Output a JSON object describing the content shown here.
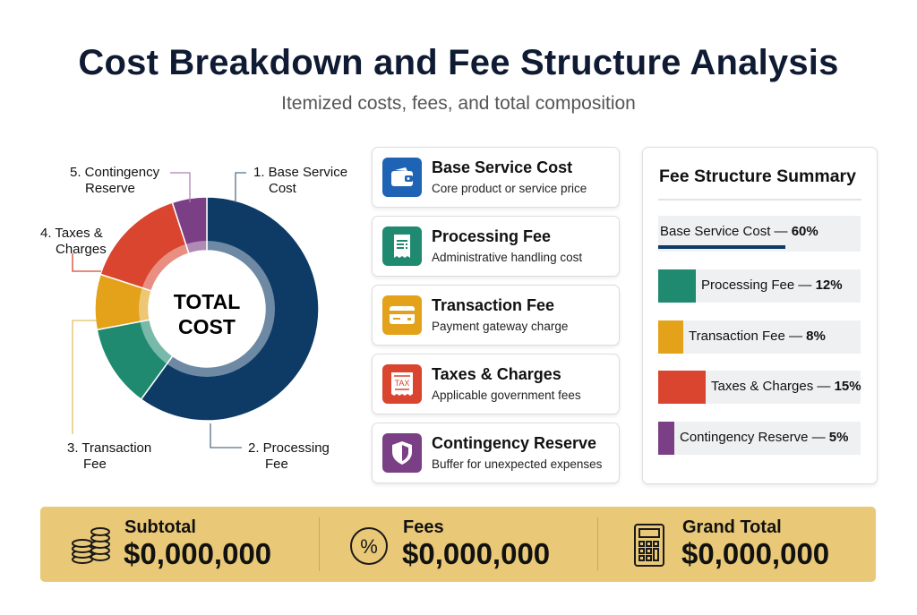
{
  "header": {
    "title": "Cost Breakdown and Fee Structure Analysis",
    "subtitle": "Itemized costs, fees, and total composition"
  },
  "chart_data": {
    "type": "pie",
    "variant": "donut",
    "center_label": [
      "TOTAL",
      "COST"
    ],
    "categories": [
      "Base Service Cost",
      "Processing Fee",
      "Transaction Fee",
      "Taxes & Charges",
      "Contingency Reserve"
    ],
    "callouts": [
      [
        "1. Base Service",
        "Cost"
      ],
      [
        "2. Processing",
        "Fee"
      ],
      [
        "3. Transaction",
        "Fee"
      ],
      [
        "4. Taxes &",
        "Charges"
      ],
      [
        "5. Contingency",
        "Reserve"
      ]
    ],
    "values": [
      60,
      12,
      8,
      15,
      5
    ],
    "unit": "%",
    "colors": [
      "#0d3b66",
      "#1f8a70",
      "#e3a21a",
      "#d9452f",
      "#7b3f86"
    ],
    "legend": "none"
  },
  "cards": [
    {
      "title": "Base Service Cost",
      "desc": "Core product or service price",
      "icon": "wallet-icon",
      "color": "#1f64b4"
    },
    {
      "title": "Processing Fee",
      "desc": "Administrative handling cost",
      "icon": "receipt-icon",
      "color": "#1f8a70"
    },
    {
      "title": "Transaction Fee",
      "desc": "Payment gateway charge",
      "icon": "credit-card-icon",
      "color": "#e3a21a"
    },
    {
      "title": "Taxes & Charges",
      "desc": "Applicable government fees",
      "icon": "tax-receipt-icon",
      "color": "#d9452f",
      "icon_text": "TAX"
    },
    {
      "title": "Contingency Reserve",
      "desc": "Buffer for unexpected expenses",
      "icon": "shield-icon",
      "color": "#7b3f86"
    }
  ],
  "summary": {
    "title": "Fee Structure Summary",
    "rows": [
      {
        "label": "Base Service Cost — ",
        "pct": "60%",
        "value": 60
      },
      {
        "label": "Processing Fee — ",
        "pct": "12%",
        "value": 12
      },
      {
        "label": "Transaction Fee — ",
        "pct": "8%",
        "value": 8
      },
      {
        "label": "Taxes & Charges — ",
        "pct": "15%",
        "value": 15
      },
      {
        "label": "Contingency Reserve — ",
        "pct": "5%",
        "value": 5
      }
    ]
  },
  "totals": [
    {
      "label": "Subtotal",
      "value": "$0,000,000",
      "icon": "coins-icon"
    },
    {
      "label": "Fees",
      "value": "$0,000,000",
      "icon": "percent-icon"
    },
    {
      "label": "Grand Total",
      "value": "$0,000,000",
      "icon": "calculator-icon"
    }
  ]
}
